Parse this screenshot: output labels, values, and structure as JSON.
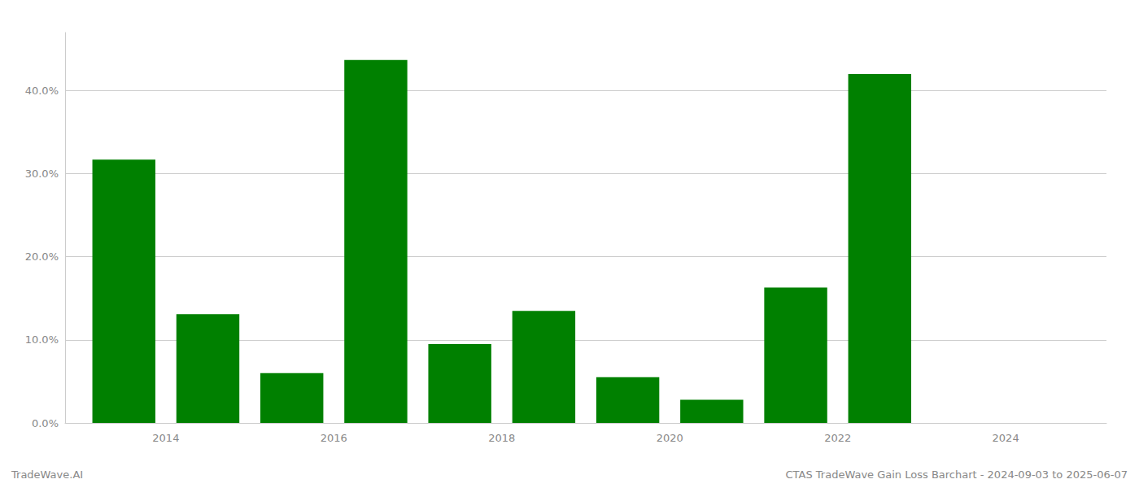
{
  "chart_data": {
    "type": "bar",
    "x": [
      2013,
      2014,
      2015,
      2016,
      2017,
      2018,
      2019,
      2020,
      2021,
      2022
    ],
    "values": [
      0.317,
      0.131,
      0.06,
      0.437,
      0.095,
      0.135,
      0.055,
      0.028,
      0.163,
      0.42
    ],
    "color": "#008000",
    "xlim": [
      2012.3,
      2024.7
    ],
    "xticks": [
      {
        "value": 2013.5,
        "label": "2014"
      },
      {
        "value": 2015.5,
        "label": "2016"
      },
      {
        "value": 2017.5,
        "label": "2018"
      },
      {
        "value": 2019.5,
        "label": "2020"
      },
      {
        "value": 2021.5,
        "label": "2022"
      },
      {
        "value": 2023.5,
        "label": "2024"
      }
    ],
    "ylim": [
      0,
      0.47
    ],
    "yticks": [
      {
        "value": 0.0,
        "label": "0.0%"
      },
      {
        "value": 0.1,
        "label": "10.0%"
      },
      {
        "value": 0.2,
        "label": "20.0%"
      },
      {
        "value": 0.3,
        "label": "30.0%"
      },
      {
        "value": 0.4,
        "label": "40.0%"
      }
    ],
    "grid": true,
    "annotations": [
      "TradeWave.AI",
      "CTAS TradeWave Gain Loss Barchart - 2024-09-03 to 2025-06-07"
    ]
  }
}
